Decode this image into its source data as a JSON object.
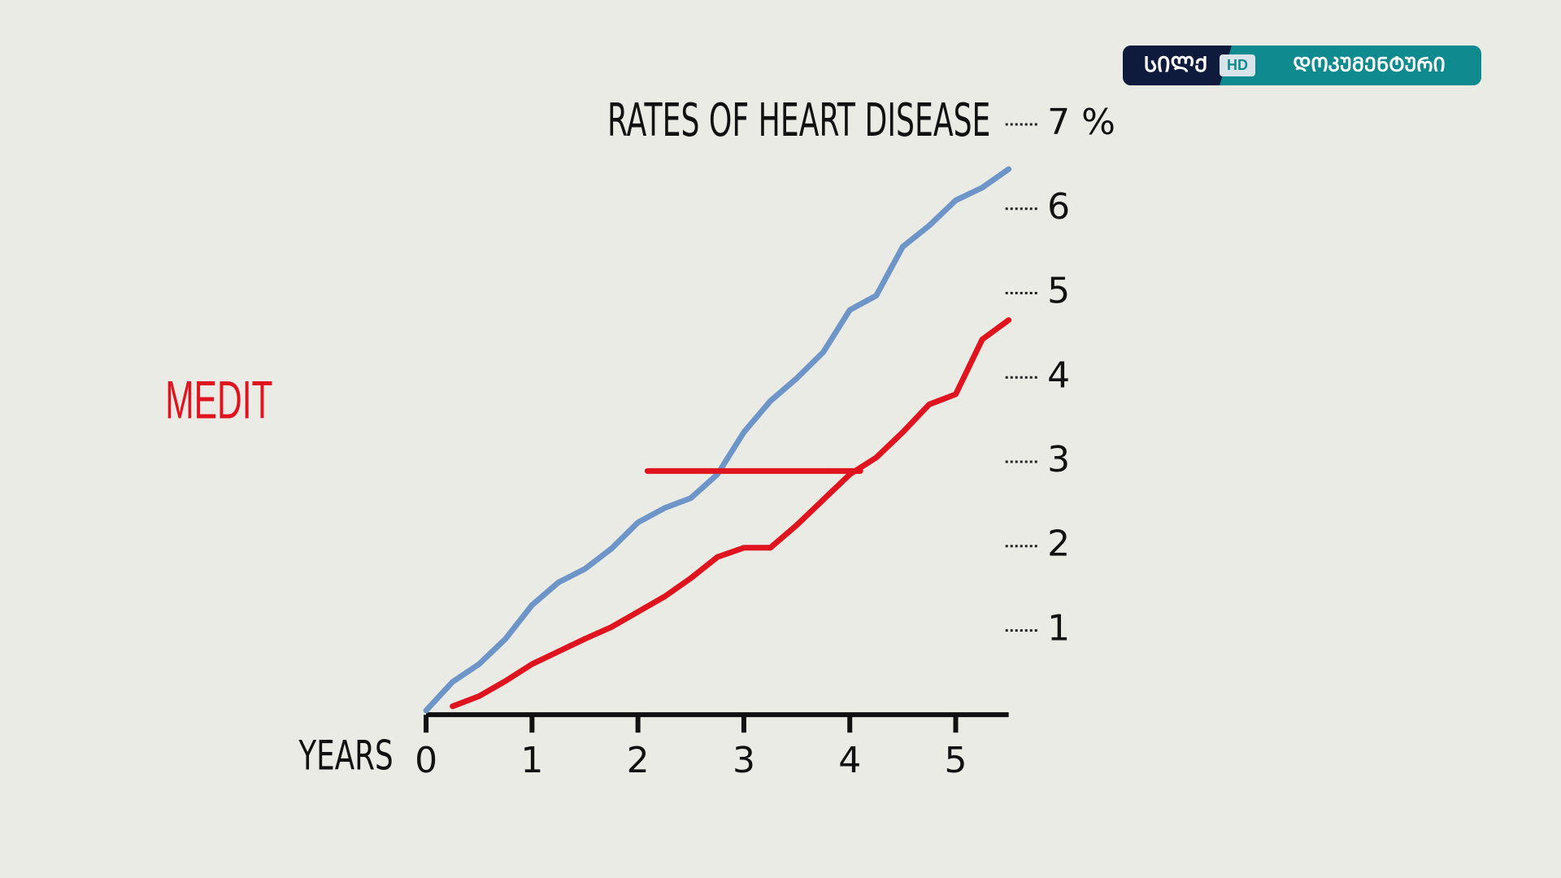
{
  "chart_data": {
    "type": "line",
    "title": "RATES OF HEART DISEASE",
    "xlabel": "YEARS",
    "annotation": "MEDIT",
    "x": [
      0,
      0.25,
      0.5,
      0.75,
      1,
      1.25,
      1.5,
      1.75,
      2,
      2.25,
      2.5,
      2.75,
      3,
      3.25,
      3.5,
      3.75,
      4,
      4.25,
      4.5,
      4.75,
      5,
      5.25,
      5.5
    ],
    "series": [
      {
        "color": "#6e95c8",
        "values": [
          0.05,
          0.39,
          0.6,
          0.9,
          1.3,
          1.57,
          1.73,
          1.97,
          2.28,
          2.45,
          2.57,
          2.85,
          3.35,
          3.72,
          3.99,
          4.3,
          4.8,
          4.97,
          5.55,
          5.8,
          6.1,
          6.25,
          6.47
        ]
      },
      {
        "color": "#e0141e",
        "values": [
          null,
          0.1,
          0.22,
          0.4,
          0.6,
          0.75,
          0.9,
          1.04,
          1.22,
          1.4,
          1.62,
          1.87,
          1.98,
          1.98,
          2.25,
          2.55,
          2.85,
          3.05,
          3.35,
          3.68,
          3.8,
          4.45,
          4.68
        ]
      }
    ],
    "reference_line": {
      "x": [
        2.09,
        4.1
      ],
      "y": 2.89,
      "color": "#e0141e"
    },
    "xlim": [
      0,
      5.5
    ],
    "ylim": [
      0,
      7
    ],
    "xticks": [
      0,
      1,
      2,
      3,
      4,
      5
    ],
    "yticks": [
      1,
      2,
      3,
      4,
      5,
      6,
      {
        "value": 7,
        "label": "7 %"
      }
    ]
  },
  "logo": {
    "left": "ᲡᲘᲚᲥ",
    "badge": "HD",
    "right": "ᲓᲝᲙᲣᲛᲔᲜᲢᲣᲠᲘ"
  }
}
